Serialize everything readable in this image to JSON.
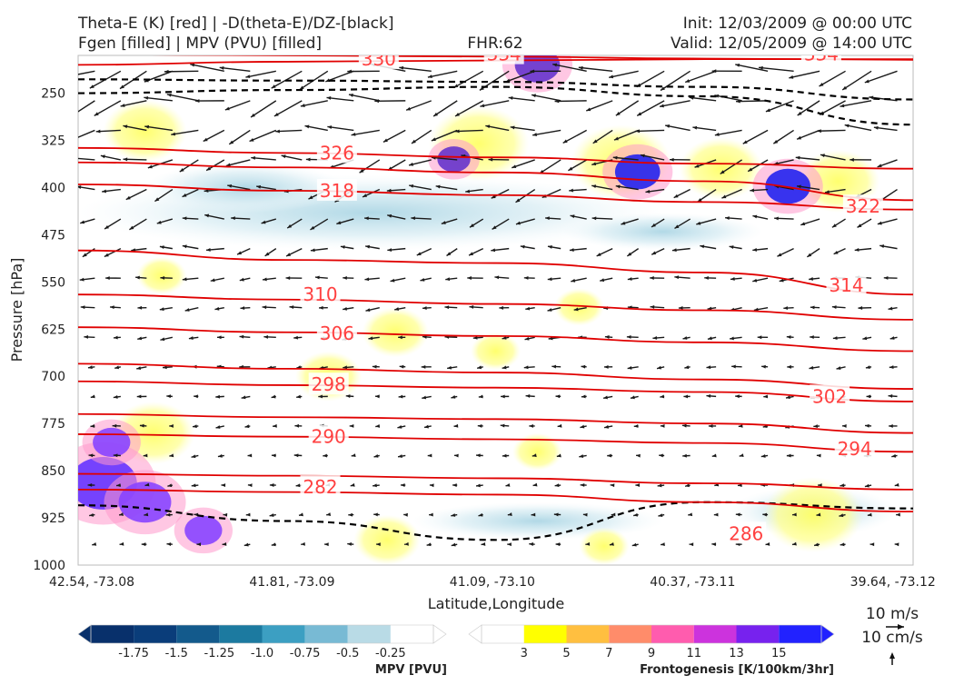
{
  "header": {
    "title_left_1": "Theta-E (K) [red] | -D(theta-E)/DZ-[black]",
    "title_left_2": "Fgen [filled] | MPV (PVU) [filled]",
    "fhr": "FHR:62",
    "init": "Init: 12/03/2009 @ 00:00 UTC",
    "valid": "Valid: 12/05/2009 @ 14:00 UTC"
  },
  "chart_data": {
    "type": "cross-section",
    "xlabel": "Latitude,Longitude",
    "ylabel": "Pressure [hPa]",
    "x_ticks": [
      "42.54, -73.08",
      "41.81, -73.09",
      "41.09, -73.10",
      "40.37, -73.11",
      "39.64, -73.12"
    ],
    "y_ticks": [
      250,
      325,
      400,
      475,
      550,
      625,
      700,
      775,
      850,
      925,
      1000
    ],
    "ylim": [
      1000,
      190
    ],
    "theta_e_contours": [
      {
        "label": "330",
        "p": [
          205,
          200,
          198,
          196,
          196
        ]
      },
      {
        "label": "334",
        "p": [
          188,
          190,
          192,
          195,
          197
        ]
      },
      {
        "label": "326",
        "p": [
          337,
          345,
          352,
          362,
          370
        ]
      },
      {
        "label": "318",
        "p": [
          395,
          405,
          412,
          423,
          435
        ]
      },
      {
        "label": "322",
        "p": [
          360,
          368,
          376,
          390,
          420
        ]
      },
      {
        "label": "314",
        "p": [
          500,
          515,
          520,
          535,
          570
        ]
      },
      {
        "label": "310",
        "p": [
          570,
          578,
          585,
          595,
          610
        ]
      },
      {
        "label": "306",
        "p": [
          622,
          630,
          636,
          646,
          660
        ]
      },
      {
        "label": "302",
        "p": [
          680,
          688,
          694,
          705,
          720
        ]
      },
      {
        "label": "298",
        "p": [
          708,
          714,
          718,
          725,
          740
        ]
      },
      {
        "label": "294",
        "p": [
          760,
          765,
          768,
          775,
          790
        ]
      },
      {
        "label": "290",
        "p": [
          792,
          796,
          800,
          806,
          820
        ]
      },
      {
        "label": "286",
        "p": [
          880,
          884,
          888,
          900,
          915
        ]
      },
      {
        "label": "282",
        "p": [
          855,
          858,
          862,
          870,
          880
        ]
      }
    ],
    "theta_e_labels": [
      {
        "text": "330",
        "x": 0.36,
        "p": 196
      },
      {
        "text": "334",
        "x": 0.51,
        "p": 188
      },
      {
        "text": "334",
        "x": 0.89,
        "p": 188
      },
      {
        "text": "326",
        "x": 0.31,
        "p": 345
      },
      {
        "text": "318",
        "x": 0.31,
        "p": 405
      },
      {
        "text": "322",
        "x": 0.94,
        "p": 430
      },
      {
        "text": "310",
        "x": 0.29,
        "p": 570
      },
      {
        "text": "314",
        "x": 0.92,
        "p": 555
      },
      {
        "text": "306",
        "x": 0.31,
        "p": 632
      },
      {
        "text": "298",
        "x": 0.3,
        "p": 713
      },
      {
        "text": "302",
        "x": 0.9,
        "p": 732
      },
      {
        "text": "290",
        "x": 0.3,
        "p": 796
      },
      {
        "text": "294",
        "x": 0.93,
        "p": 815
      },
      {
        "text": "282",
        "x": 0.29,
        "p": 876
      },
      {
        "text": "286",
        "x": 0.8,
        "p": 950
      }
    ],
    "pv_blobs": [
      {
        "x": 0.03,
        "p": 870,
        "r": 0.045,
        "color": "#6633ff"
      },
      {
        "x": 0.08,
        "p": 900,
        "r": 0.035,
        "color": "#8844ff"
      },
      {
        "x": 0.04,
        "p": 805,
        "r": 0.025,
        "color": "#8844ff"
      },
      {
        "x": 0.15,
        "p": 945,
        "r": 0.025,
        "color": "#8844ff"
      },
      {
        "x": 0.67,
        "p": 375,
        "r": 0.03,
        "color": "#2222ee"
      },
      {
        "x": 0.85,
        "p": 398,
        "r": 0.03,
        "color": "#2222ee"
      },
      {
        "x": 0.45,
        "p": 355,
        "r": 0.022,
        "color": "#6633cc"
      },
      {
        "x": 0.55,
        "p": 205,
        "r": 0.03,
        "color": "#6633cc"
      }
    ],
    "fgen_yellow": [
      {
        "x": 0.08,
        "p": 310,
        "r": 0.05
      },
      {
        "x": 0.09,
        "p": 790,
        "r": 0.05
      },
      {
        "x": 0.3,
        "p": 700,
        "r": 0.04
      },
      {
        "x": 0.38,
        "p": 630,
        "r": 0.04
      },
      {
        "x": 0.5,
        "p": 660,
        "r": 0.03
      },
      {
        "x": 0.48,
        "p": 330,
        "r": 0.06
      },
      {
        "x": 0.65,
        "p": 360,
        "r": 0.06
      },
      {
        "x": 0.77,
        "p": 370,
        "r": 0.05
      },
      {
        "x": 0.91,
        "p": 390,
        "r": 0.05
      },
      {
        "x": 0.1,
        "p": 540,
        "r": 0.03
      },
      {
        "x": 0.6,
        "p": 590,
        "r": 0.03
      },
      {
        "x": 0.88,
        "p": 920,
        "r": 0.06
      },
      {
        "x": 0.37,
        "p": 960,
        "r": 0.04
      },
      {
        "x": 0.63,
        "p": 970,
        "r": 0.03
      },
      {
        "x": 0.55,
        "p": 820,
        "r": 0.03
      }
    ],
    "mpv_neg_shading": [
      {
        "x": 0.35,
        "p": 440,
        "rx": 0.35,
        "rp": 60
      },
      {
        "x": 0.2,
        "p": 400,
        "rx": 0.12,
        "rp": 40
      },
      {
        "x": 0.7,
        "p": 470,
        "rx": 0.12,
        "rp": 30
      },
      {
        "x": 0.88,
        "p": 915,
        "rx": 0.1,
        "rp": 40
      },
      {
        "x": 0.55,
        "p": 930,
        "rx": 0.15,
        "rp": 30
      }
    ],
    "stability_dashed": [
      {
        "p": [
          250,
          245,
          240,
          255,
          300
        ]
      },
      {
        "p": [
          228,
          230,
          232,
          240,
          260
        ]
      },
      {
        "p": [
          905,
          930,
          960,
          900,
          910
        ]
      }
    ],
    "vector_reference": {
      "label_1": "10 m/s",
      "label_2": "10 cm/s"
    },
    "colorbar_mpv": {
      "title": "MPV [PVU]",
      "labels": [
        "-1.75",
        "-1.5",
        "-1.25",
        "-1.0",
        "-0.75",
        "-0.5",
        "-0.25"
      ],
      "colors": [
        "#08306b",
        "#0a3d7a",
        "#135a8c",
        "#1c7aa0",
        "#3c9fc2",
        "#78bad4",
        "#b9dbe6",
        "#ffffff"
      ]
    },
    "colorbar_fgen": {
      "title": "Frontogenesis [K/100km/3hr]",
      "labels": [
        "3",
        "5",
        "7",
        "9",
        "11",
        "13",
        "15"
      ],
      "colors": [
        "#ffffff",
        "#ffff00",
        "#ffbf40",
        "#ff8c6a",
        "#ff5cae",
        "#cc33dd",
        "#7722ee",
        "#2222ff"
      ]
    }
  }
}
